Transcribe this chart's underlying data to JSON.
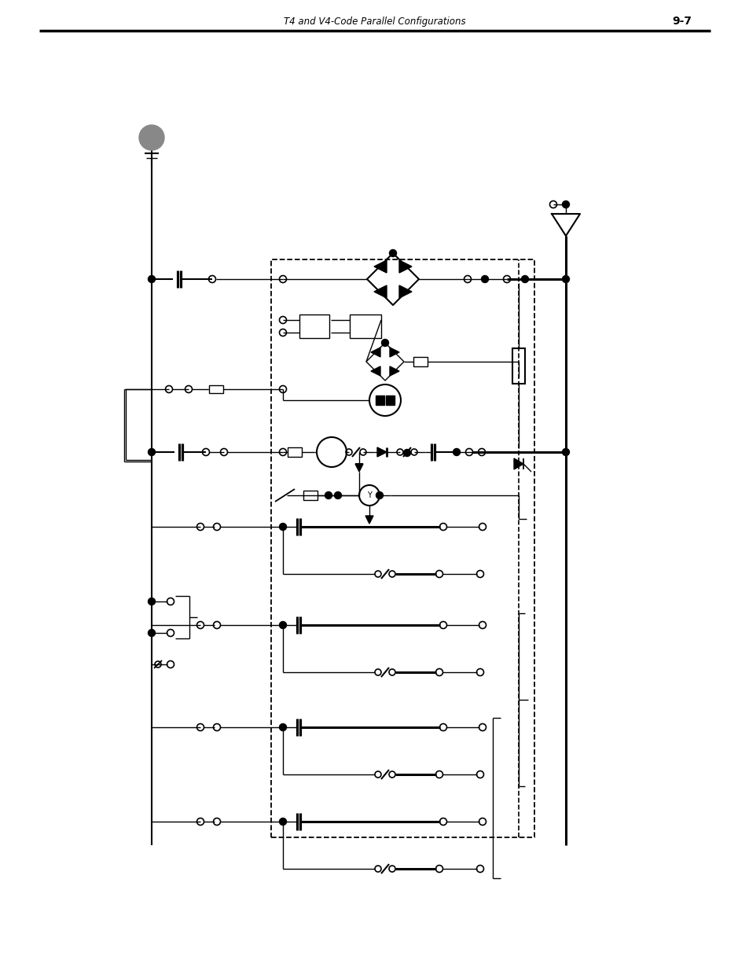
{
  "title": "T4 and V4-Code Parallel Configurations",
  "page_num": "9-7",
  "bg_color": "#ffffff",
  "gray_color": "#888888",
  "black": "#000000"
}
